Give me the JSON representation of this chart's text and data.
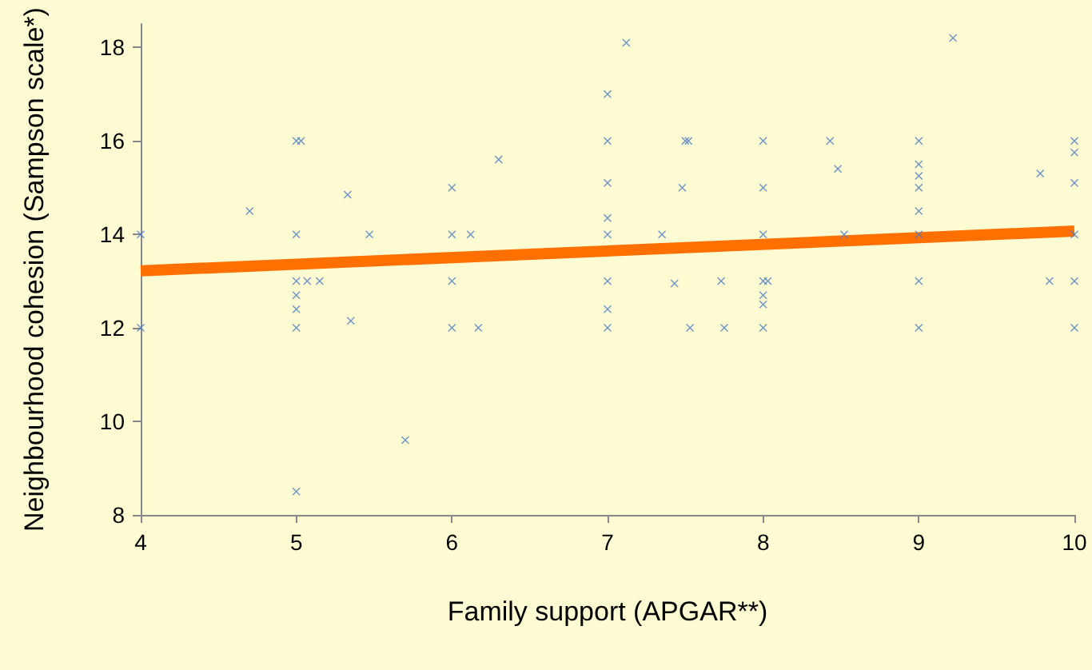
{
  "chart_data": {
    "type": "scatter",
    "xlabel": "Family support (APGAR**)",
    "ylabel": "Neighbourhood cohesion (Sampson scale*)",
    "xlim": [
      4,
      10
    ],
    "xticks": [
      4,
      5,
      6,
      7,
      8,
      9,
      10
    ],
    "ylim": [
      8,
      18.5
    ],
    "yticks": [
      8,
      10,
      12,
      14,
      16,
      18
    ],
    "grid": false,
    "marker": "cross",
    "series": [
      {
        "color": "#4a7bc4",
        "x": [
          4,
          4,
          5,
          5.03,
          5,
          5,
          5,
          5.07,
          5.15,
          5,
          5,
          5,
          4.7,
          5.33,
          5.47,
          5.35,
          5.7,
          6,
          6,
          6,
          6,
          6.12,
          6.17,
          6.3,
          7,
          7,
          7,
          7,
          7,
          7,
          7,
          7,
          7.12,
          7.35,
          7.43,
          7.5,
          7.52,
          7.48,
          7.53,
          7.73,
          7.75,
          8,
          8,
          8,
          8,
          8.03,
          8,
          8,
          8,
          8.43,
          8.48,
          8.52,
          9,
          9,
          9,
          9,
          9,
          9,
          9,
          9,
          9.22,
          9.78,
          9.84,
          10,
          10,
          10,
          10,
          10,
          10
        ],
        "values": [
          14,
          12,
          16,
          16,
          14,
          13,
          12.7,
          13,
          13,
          12,
          12.4,
          8.5,
          14.5,
          14.85,
          14,
          12.15,
          9.6,
          15,
          14,
          13,
          12,
          14,
          12,
          15.6,
          16,
          17,
          15.1,
          14.35,
          14,
          13,
          12.4,
          12,
          18.1,
          14,
          12.95,
          16,
          16,
          15,
          12,
          13,
          12,
          16,
          15,
          14,
          13,
          13,
          12.7,
          12.5,
          12,
          16,
          15.4,
          14,
          16,
          15.5,
          15.25,
          15,
          14.5,
          14,
          13,
          12,
          18.2,
          15.3,
          13,
          16,
          15.75,
          15.1,
          14,
          13,
          12
        ]
      },
      {
        "type": "line",
        "color": "#ff7000",
        "marker": "none",
        "line_style": "solid",
        "x": [
          4,
          10
        ],
        "values": [
          13.22,
          14.07
        ]
      }
    ]
  }
}
